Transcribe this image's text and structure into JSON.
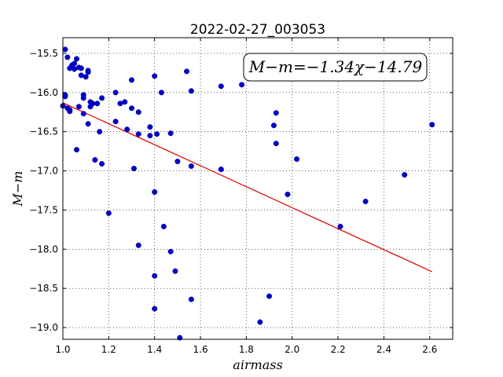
{
  "chart_data": {
    "type": "scatter",
    "title": "2022-02-27_003053",
    "xlabel": "airmass",
    "ylabel": "M−m",
    "xlim": [
      1.0,
      2.7
    ],
    "ylim": [
      -19.15,
      -15.3
    ],
    "xticks": [
      1.0,
      1.2,
      1.4,
      1.6,
      1.8,
      2.0,
      2.2,
      2.4,
      2.6
    ],
    "xtick_labels": [
      "1.0",
      "1.2",
      "1.4",
      "1.6",
      "1.8",
      "2.0",
      "2.2",
      "2.4",
      "2.6"
    ],
    "yticks": [
      -15.5,
      -16.0,
      -16.5,
      -17.0,
      -17.5,
      -18.0,
      -18.5,
      -19.0
    ],
    "ytick_labels": [
      "−15.5",
      "−16.0",
      "−16.5",
      "−17.0",
      "−17.5",
      "−18.0",
      "−18.5",
      "−19.0"
    ],
    "grid": true,
    "annotation": "M−m=−1.34χ−14.79",
    "colors": {
      "points": "#0000cc",
      "fit": "#dd0000"
    },
    "fit": {
      "slope": -1.34,
      "intercept": -14.79,
      "x_range": [
        1.0,
        2.61
      ]
    },
    "points": [
      [
        1.01,
        -15.45
      ],
      [
        1.02,
        -15.55
      ],
      [
        1.03,
        -15.69
      ],
      [
        1.04,
        -15.65
      ],
      [
        1.05,
        -15.63
      ],
      [
        1.05,
        -15.7
      ],
      [
        1.06,
        -15.57
      ],
      [
        1.07,
        -15.68
      ],
      [
        1.08,
        -15.69
      ],
      [
        1.08,
        -15.78
      ],
      [
        1.1,
        -15.8
      ],
      [
        1.11,
        -15.72
      ],
      [
        1.11,
        -15.74
      ],
      [
        1.01,
        -16.03
      ],
      [
        1.01,
        -16.05
      ],
      [
        1.0,
        -16.17
      ],
      [
        1.02,
        -16.2
      ],
      [
        1.03,
        -16.22
      ],
      [
        1.03,
        -16.24
      ],
      [
        1.07,
        -16.18
      ],
      [
        1.09,
        -16.03
      ],
      [
        1.09,
        -16.07
      ],
      [
        1.09,
        -16.27
      ],
      [
        1.12,
        -16.12
      ],
      [
        1.12,
        -16.18
      ],
      [
        1.13,
        -16.14
      ],
      [
        1.15,
        -16.14
      ],
      [
        1.17,
        -16.07
      ],
      [
        1.11,
        -16.4
      ],
      [
        1.06,
        -16.73
      ],
      [
        1.16,
        -16.5
      ],
      [
        1.14,
        -16.86
      ],
      [
        1.17,
        -16.91
      ],
      [
        1.23,
        -16.0
      ],
      [
        1.23,
        -16.37
      ],
      [
        1.25,
        -16.14
      ],
      [
        1.27,
        -16.12
      ],
      [
        1.28,
        -16.47
      ],
      [
        1.3,
        -15.84
      ],
      [
        1.3,
        -16.2
      ],
      [
        1.31,
        -16.97
      ],
      [
        1.33,
        -16.25
      ],
      [
        1.33,
        -16.53
      ],
      [
        1.38,
        -16.44
      ],
      [
        1.38,
        -16.55
      ],
      [
        1.4,
        -15.79
      ],
      [
        1.41,
        -16.53
      ],
      [
        1.43,
        -16.0
      ],
      [
        1.47,
        -16.52
      ],
      [
        1.5,
        -16.88
      ],
      [
        1.54,
        -15.73
      ],
      [
        1.56,
        -15.98
      ],
      [
        1.56,
        -16.94
      ],
      [
        1.2,
        -17.54
      ],
      [
        1.4,
        -17.27
      ],
      [
        1.44,
        -17.71
      ],
      [
        1.33,
        -17.95
      ],
      [
        1.47,
        -18.03
      ],
      [
        1.49,
        -18.28
      ],
      [
        1.4,
        -18.34
      ],
      [
        1.56,
        -18.64
      ],
      [
        1.4,
        -18.76
      ],
      [
        1.51,
        -19.13
      ],
      [
        1.69,
        -15.92
      ],
      [
        1.69,
        -16.98
      ],
      [
        1.78,
        -15.9
      ],
      [
        1.92,
        -16.42
      ],
      [
        1.93,
        -16.26
      ],
      [
        1.93,
        -16.65
      ],
      [
        1.98,
        -17.3
      ],
      [
        2.02,
        -16.85
      ],
      [
        1.86,
        -18.93
      ],
      [
        1.9,
        -18.6
      ],
      [
        2.21,
        -17.71
      ],
      [
        2.32,
        -17.39
      ],
      [
        2.49,
        -17.05
      ],
      [
        2.61,
        -16.41
      ]
    ]
  }
}
